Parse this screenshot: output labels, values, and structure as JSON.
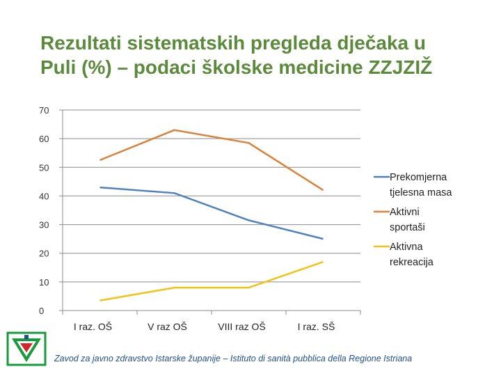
{
  "title": {
    "line1": "Rezultati sistematskih pregleda dječaka u",
    "line2": "Puli (%) – podaci školske medicine ZZJZIŽ"
  },
  "footer": "Zavod za javno zdravstvo Istarske županije – Istituto di sanità pubblica della Regione Istriana",
  "chart_data": {
    "type": "line",
    "categories": [
      "I raz. OŠ",
      "V raz OŠ",
      "VIII raz OŠ",
      "I raz. SŠ"
    ],
    "ylim": [
      0,
      70
    ],
    "yticks": [
      "0",
      "10",
      "20",
      "30",
      "40",
      "50",
      "60",
      "70"
    ],
    "grid": true,
    "legend_position": "right",
    "series": [
      {
        "name": "Prekomjerna tjelesna masa",
        "values": [
          43,
          41,
          31.5,
          25
        ],
        "color": "#4f81bd"
      },
      {
        "name": "Aktivni sportaši",
        "values": [
          52.5,
          63,
          58.5,
          42
        ],
        "color": "#d9823b"
      },
      {
        "name": "Aktivna rekreacija",
        "values": [
          3.5,
          8,
          8,
          17
        ],
        "color": "#f2c314"
      }
    ]
  },
  "legend_lines": [
    [
      "Prekomjerna",
      "tjelesna masa"
    ],
    [
      "Aktivni",
      "sportaši"
    ],
    [
      "Aktivna",
      "rekreacija"
    ]
  ],
  "logo": {
    "colors": [
      "#1a9a3c",
      "#d4252c",
      "#1f4f8f"
    ]
  }
}
